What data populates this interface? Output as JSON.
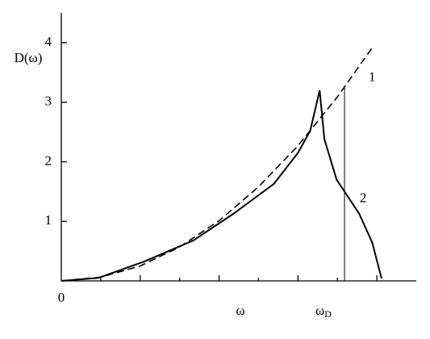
{
  "chart_data": {
    "type": "line",
    "y_label": "D(ω)",
    "x_label": "ω",
    "xlim": [
      0,
      9
    ],
    "ylim": [
      0,
      4.5
    ],
    "xticks": [
      0
    ],
    "yticks": [
      1,
      2,
      3,
      4
    ],
    "series": [
      {
        "name": "1",
        "color": "#000000",
        "dash": true,
        "x": [
          0,
          1,
          2,
          3,
          4,
          5,
          6,
          7,
          7.92
        ],
        "values": [
          0,
          0.063,
          0.25,
          0.57,
          1.01,
          1.58,
          2.27,
          3.09,
          3.95
        ]
      },
      {
        "name": "2",
        "color": "#000000",
        "dash": false,
        "x": [
          0,
          0.94,
          2.12,
          3.35,
          4.37,
          5.39,
          6.0,
          6.31,
          6.55,
          6.67,
          6.98,
          7.55,
          7.88,
          8.12
        ],
        "values": [
          0,
          0.05,
          0.33,
          0.68,
          1.13,
          1.63,
          2.15,
          2.52,
          3.2,
          2.38,
          1.7,
          1.13,
          0.65,
          0.04
        ]
      }
    ],
    "vline": {
      "x": 7.18,
      "label": "ω",
      "label_sub": "D"
    }
  }
}
